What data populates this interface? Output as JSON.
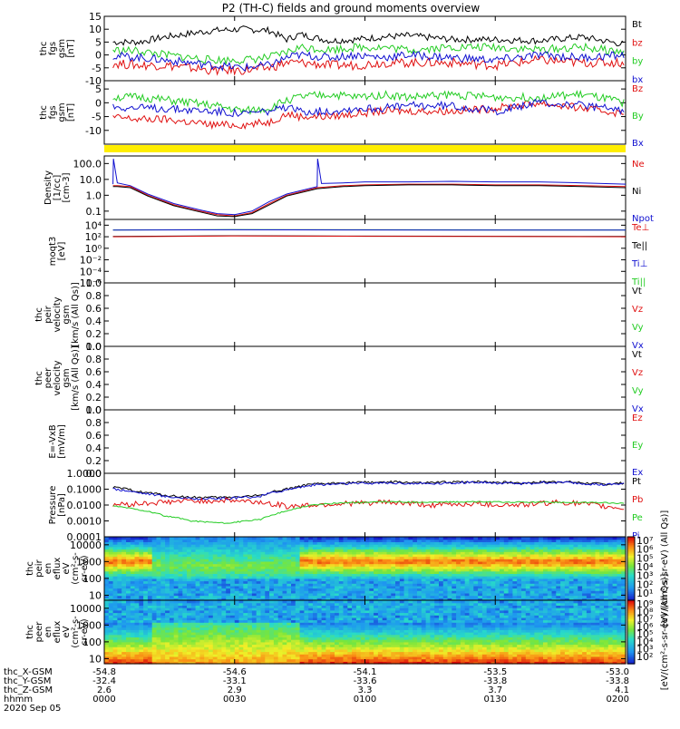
{
  "title": "P2 (TH-C) fields and ground moments overview",
  "colors": {
    "black": "#000000",
    "red": "#e01010",
    "green": "#22cc22",
    "blue": "#1010d0",
    "yellow": "#ffee00"
  },
  "chart_data": [
    {
      "type": "line",
      "id": "fgs_gsm",
      "ylabel_lines": [
        "thc",
        "fgs",
        "gsm",
        "[nT]"
      ],
      "ylim": [
        -10,
        15
      ],
      "yticks": [
        "15",
        "10",
        "5",
        "0",
        "-5",
        "-10"
      ],
      "legend": [
        {
          "label": "Bt",
          "color": "#000000"
        },
        {
          "label": "bz",
          "color": "#e01010"
        },
        {
          "label": "by",
          "color": "#22cc22"
        },
        {
          "label": "bx",
          "color": "#1010d0"
        }
      ],
      "series": [
        {
          "name": "Bt",
          "color": "#000000",
          "x": [
            0,
            8,
            14,
            25,
            32,
            38,
            42,
            45,
            52,
            58,
            64,
            70,
            80,
            90,
            100,
            110,
            120
          ],
          "y": [
            5,
            5,
            7,
            9.5,
            10,
            9.5,
            6,
            8,
            5.5,
            6,
            7,
            7.5,
            6,
            6,
            5.5,
            7,
            4
          ],
          "noise": 1.3
        },
        {
          "name": "bz",
          "color": "#e01010",
          "x": [
            0,
            8,
            14,
            25,
            32,
            38,
            42,
            45,
            52,
            58,
            64,
            70,
            80,
            90,
            100,
            110,
            120
          ],
          "y": [
            -3,
            -4,
            -4,
            -6,
            -6,
            -5,
            -3,
            -3,
            -4,
            -4,
            -3,
            -3,
            -3,
            -4,
            -2,
            -3,
            -3
          ],
          "noise": 1.8
        },
        {
          "name": "by",
          "color": "#22cc22",
          "x": [
            0,
            8,
            14,
            25,
            32,
            38,
            42,
            45,
            52,
            58,
            64,
            70,
            80,
            90,
            100,
            110,
            120
          ],
          "y": [
            2,
            1.5,
            0,
            -2,
            -2,
            -1,
            1,
            3,
            2,
            3,
            3,
            2,
            3,
            3,
            2,
            3,
            1
          ],
          "noise": 1.6
        },
        {
          "name": "bx",
          "color": "#1010d0",
          "x": [
            0,
            8,
            14,
            25,
            32,
            38,
            42,
            45,
            52,
            58,
            64,
            70,
            80,
            90,
            100,
            110,
            120
          ],
          "y": [
            0,
            -1,
            -2,
            -4,
            -5,
            -4,
            -1,
            0,
            -1,
            0,
            -1,
            0,
            -1,
            -2,
            0,
            -1,
            0
          ],
          "noise": 1.6
        }
      ]
    },
    {
      "type": "line",
      "id": "fgs_gsm_components",
      "ylabel_lines": [
        "thc",
        "fgs",
        "gsm",
        "[nT]"
      ],
      "ylim": [
        -15,
        8
      ],
      "yticks": [
        "5",
        "0",
        "-5",
        "-10"
      ],
      "legend": [
        {
          "label": "Bz",
          "color": "#e01010"
        },
        {
          "label": "By",
          "color": "#22cc22"
        },
        {
          "label": "Bx",
          "color": "#1010d0"
        }
      ],
      "series": [
        {
          "name": "Bz",
          "color": "#e01010",
          "x": [
            0,
            8,
            14,
            25,
            32,
            38,
            42,
            45,
            52,
            58,
            64,
            70,
            80,
            90,
            100,
            110,
            120
          ],
          "y": [
            -5,
            -6,
            -6,
            -8,
            -8,
            -7,
            -4,
            -5,
            -5,
            -4,
            -3,
            -3,
            -3,
            -2,
            0,
            -2,
            -4
          ],
          "noise": 1.4
        },
        {
          "name": "By",
          "color": "#22cc22",
          "x": [
            0,
            8,
            14,
            25,
            32,
            38,
            42,
            45,
            52,
            58,
            64,
            70,
            80,
            90,
            100,
            110,
            120
          ],
          "y": [
            2,
            2,
            1,
            -1,
            -3,
            -2,
            1,
            2,
            3,
            2,
            3,
            2,
            3,
            2,
            2,
            3,
            0
          ],
          "noise": 1.5
        },
        {
          "name": "Bx",
          "color": "#1010d0",
          "x": [
            0,
            8,
            14,
            25,
            32,
            38,
            42,
            45,
            52,
            58,
            64,
            70,
            80,
            90,
            100,
            110,
            120
          ],
          "y": [
            -1,
            -2,
            -2,
            -3,
            -4,
            -3,
            -2,
            -3,
            -3,
            -2,
            -2,
            -1,
            -1,
            -3,
            0,
            -1,
            -3
          ],
          "noise": 1.5
        }
      ]
    },
    {
      "type": "line",
      "id": "density",
      "scale": "log",
      "ylabel_lines": [
        "Density",
        "[1/cc]",
        "[cm-3]"
      ],
      "ylim": [
        0.03,
        300
      ],
      "yticks": [
        {
          "v": 100,
          "t": "100.0"
        },
        {
          "v": 10,
          "t": "10.0"
        },
        {
          "v": 1,
          "t": "1.0"
        },
        {
          "v": 0.1,
          "t": "0.1"
        }
      ],
      "legend": [
        {
          "label": "Ne",
          "color": "#e01010"
        },
        {
          "label": "Ni",
          "color": "#000000"
        },
        {
          "label": "Npot",
          "color": "#1010d0"
        }
      ],
      "series": [
        {
          "name": "Npot",
          "color": "#1010d0",
          "x": [
            0,
            2,
            2.1,
            3,
            6,
            10,
            16,
            22,
            26,
            30,
            34,
            38,
            42,
            49,
            49.1,
            50,
            55,
            60,
            70,
            80,
            90,
            100,
            110,
            120
          ],
          "y": [
            5,
            5,
            200,
            6,
            4,
            1.2,
            0.3,
            0.12,
            0.07,
            0.06,
            0.1,
            0.4,
            1.2,
            3.5,
            200,
            5.5,
            6,
            7,
            7,
            7.5,
            7,
            7,
            6,
            5
          ]
        },
        {
          "name": "Ne",
          "color": "#e01010",
          "x": [
            0,
            3,
            6,
            10,
            16,
            22,
            26,
            30,
            34,
            38,
            42,
            49,
            55,
            60,
            70,
            80,
            90,
            100,
            110,
            120
          ],
          "y": [
            4,
            4,
            3.5,
            1,
            0.25,
            0.1,
            0.06,
            0.05,
            0.08,
            0.3,
            1,
            3,
            4,
            4.5,
            5,
            5,
            4.5,
            4.5,
            4,
            3.5
          ]
        },
        {
          "name": "Ni",
          "color": "#000000",
          "x": [
            0,
            3,
            6,
            10,
            16,
            22,
            26,
            30,
            34,
            38,
            42,
            49,
            55,
            60,
            70,
            80,
            90,
            100,
            110,
            120
          ],
          "y": [
            3.5,
            3.5,
            3,
            0.9,
            0.22,
            0.09,
            0.05,
            0.045,
            0.07,
            0.25,
            0.9,
            2.6,
            3.5,
            4,
            4.5,
            4.5,
            4,
            4,
            3.5,
            3
          ]
        }
      ]
    },
    {
      "type": "line",
      "id": "moqt3",
      "scale": "log",
      "ylabel_lines": [
        "moqt3",
        "[eV]"
      ],
      "ylim": [
        1e-06,
        100000.0
      ],
      "yticks": [
        {
          "v": 10000.0,
          "t": "10⁴"
        },
        {
          "v": 100.0,
          "t": "10²"
        },
        {
          "v": 1,
          "t": "10⁰"
        },
        {
          "v": 0.01,
          "t": "10⁻²"
        },
        {
          "v": 0.0001,
          "t": "10⁻⁴"
        },
        {
          "v": 1e-06,
          "t": "10⁻⁶"
        }
      ],
      "legend": [
        {
          "label": "Te⊥",
          "color": "#e01010"
        },
        {
          "label": "Te||",
          "color": "#000000"
        },
        {
          "label": "Ti⊥",
          "color": "#1010d0"
        },
        {
          "label": "Ti||",
          "color": "#22cc22"
        }
      ],
      "series": [
        {
          "name": "Ti||",
          "color": "#22cc22",
          "x": [
            0,
            30,
            60,
            90,
            120
          ],
          "y": [
            1500,
            1700,
            1600,
            1500,
            1500
          ]
        },
        {
          "name": "Ti⊥",
          "color": "#1010d0",
          "x": [
            0,
            30,
            60,
            90,
            120
          ],
          "y": [
            1400,
            1600,
            1500,
            1400,
            1400
          ]
        },
        {
          "name": "Te||",
          "color": "#000000",
          "x": [
            0,
            30,
            60,
            90,
            120
          ],
          "y": [
            110,
            150,
            130,
            120,
            110
          ]
        },
        {
          "name": "Te⊥",
          "color": "#e01010",
          "x": [
            0,
            30,
            60,
            90,
            120
          ],
          "y": [
            100,
            140,
            120,
            110,
            100
          ]
        }
      ]
    },
    {
      "type": "line",
      "id": "peir_velocity",
      "ylabel_lines": [
        "thc",
        "peir",
        "velocity",
        "gsm",
        "[km/s (All Qs)]"
      ],
      "ylim": [
        0,
        1
      ],
      "yticks": [
        "1.0",
        "0.8",
        "0.6",
        "0.4",
        "0.2",
        "0.0"
      ],
      "legend": [
        {
          "label": "Vt",
          "color": "#000000"
        },
        {
          "label": "Vz",
          "color": "#e01010"
        },
        {
          "label": "Vy",
          "color": "#22cc22"
        },
        {
          "label": "Vx",
          "color": "#1010d0"
        }
      ],
      "series": []
    },
    {
      "type": "line",
      "id": "peer_velocity",
      "ylabel_lines": [
        "thc",
        "peer",
        "velocity",
        "gsm",
        "[km/s (All Qs)]"
      ],
      "ylim": [
        0,
        1
      ],
      "yticks": [
        "1.0",
        "0.8",
        "0.6",
        "0.4",
        "0.2",
        "0.0"
      ],
      "legend": [
        {
          "label": "Vt",
          "color": "#000000"
        },
        {
          "label": "Vz",
          "color": "#e01010"
        },
        {
          "label": "Vy",
          "color": "#22cc22"
        },
        {
          "label": "Vx",
          "color": "#1010d0"
        }
      ],
      "series": []
    },
    {
      "type": "line",
      "id": "efield",
      "ylabel_lines": [
        "E=-VxB",
        "[mV/m]"
      ],
      "ylim": [
        0,
        1
      ],
      "yticks": [
        "1.0",
        "0.8",
        "0.6",
        "0.4",
        "0.2",
        "0.0"
      ],
      "legend": [
        {
          "label": "Ez",
          "color": "#e01010"
        },
        {
          "label": "Ey",
          "color": "#22cc22"
        },
        {
          "label": "Ex",
          "color": "#1010d0"
        }
      ],
      "series": []
    },
    {
      "type": "line",
      "id": "pressure",
      "scale": "log",
      "ylabel_lines": [
        "Pressure",
        "[nPa]"
      ],
      "ylim": [
        0.0001,
        1
      ],
      "yticks": [
        {
          "v": 1,
          "t": "1.0000"
        },
        {
          "v": 0.1,
          "t": "0.1000"
        },
        {
          "v": 0.01,
          "t": "0.0100"
        },
        {
          "v": 0.001,
          "t": "0.0010"
        },
        {
          "v": 0.0001,
          "t": "0.0001"
        }
      ],
      "legend": [
        {
          "label": "Pt",
          "color": "#000000"
        },
        {
          "label": "Pb",
          "color": "#e01010"
        },
        {
          "label": "Pe",
          "color": "#22cc22"
        },
        {
          "label": "Pi",
          "color": "#1010d0"
        }
      ],
      "series": [
        {
          "name": "Pt",
          "color": "#000000",
          "x": [
            0,
            8,
            14,
            20,
            28,
            36,
            42,
            48,
            55,
            65,
            75,
            85,
            95,
            105,
            115,
            120
          ],
          "y": [
            0.15,
            0.07,
            0.04,
            0.03,
            0.03,
            0.04,
            0.1,
            0.2,
            0.25,
            0.28,
            0.25,
            0.3,
            0.25,
            0.3,
            0.2,
            0.25
          ],
          "noise": 0.15
        },
        {
          "name": "Pi",
          "color": "#1010d0",
          "x": [
            0,
            8,
            14,
            20,
            28,
            36,
            42,
            48,
            55,
            65,
            75,
            85,
            95,
            105,
            115,
            120
          ],
          "y": [
            0.12,
            0.06,
            0.035,
            0.025,
            0.025,
            0.035,
            0.09,
            0.18,
            0.22,
            0.25,
            0.22,
            0.27,
            0.22,
            0.27,
            0.18,
            0.22
          ],
          "noise": 0.15
        },
        {
          "name": "Pb",
          "color": "#e01010",
          "x": [
            0,
            8,
            14,
            20,
            28,
            36,
            42,
            48,
            55,
            65,
            75,
            85,
            95,
            105,
            115,
            120
          ],
          "y": [
            0.01,
            0.012,
            0.015,
            0.018,
            0.02,
            0.015,
            0.008,
            0.01,
            0.012,
            0.015,
            0.01,
            0.012,
            0.01,
            0.015,
            0.008,
            0.006
          ],
          "noise": 0.35
        },
        {
          "name": "Pe",
          "color": "#22cc22",
          "x": [
            0,
            8,
            14,
            20,
            28,
            36,
            42,
            48,
            55,
            65,
            75,
            85,
            95,
            105,
            115,
            120
          ],
          "y": [
            0.01,
            0.005,
            0.002,
            0.001,
            0.0007,
            0.0012,
            0.004,
            0.01,
            0.014,
            0.016,
            0.015,
            0.016,
            0.015,
            0.015,
            0.014,
            0.012
          ],
          "noise": 0.08
        }
      ]
    },
    {
      "type": "heatmap",
      "id": "peir_en_eflux",
      "ylabel_lines": [
        "thc",
        "peir",
        "en",
        "eflux",
        "eV",
        "(cm²-s-",
        "sr-eV)"
      ],
      "yscale": "log",
      "ylim": [
        5,
        30000
      ],
      "yticks": [
        {
          "v": 10000,
          "t": "10000"
        },
        {
          "v": 1000,
          "t": "1000"
        },
        {
          "v": 100,
          "t": "100"
        },
        {
          "v": 10,
          "t": "10"
        }
      ],
      "colorbar": {
        "ticks": [
          "10⁷",
          "10⁶",
          "10⁵",
          "10⁴",
          "10³",
          "10²",
          "10¹"
        ],
        "label": "[eV/(cm²-s-sr-eV) (All Qs)]"
      }
    },
    {
      "type": "heatmap",
      "id": "peer_en_eflux",
      "ylabel_lines": [
        "thc",
        "peer",
        "en",
        "eflux",
        "eV",
        "(cm²-s-",
        "sr-eV)"
      ],
      "yscale": "log",
      "ylim": [
        5,
        30000
      ],
      "yticks": [
        {
          "v": 10000,
          "t": "10000"
        },
        {
          "v": 1000,
          "t": "1000"
        },
        {
          "v": 100,
          "t": "100"
        },
        {
          "v": 10,
          "t": "10"
        }
      ],
      "colorbar": {
        "ticks": [
          "10⁹",
          "10⁸",
          "10⁷",
          "10⁶",
          "10⁵",
          "10⁴",
          "10³",
          "10²"
        ],
        "label": "[eV/(cm²-s-sr-eV) (All Qs)]"
      }
    }
  ],
  "xaxis": {
    "range_minutes": [
      0,
      120
    ],
    "tick_minutes": [
      0,
      30,
      60,
      90,
      120
    ],
    "rows": [
      {
        "label": "thc_X-GSM",
        "values": [
          "-54.8",
          "-54.6",
          "-54.1",
          "-53.5",
          "-53.0"
        ]
      },
      {
        "label": "thc_Y-GSM",
        "values": [
          "-32.4",
          "-33.1",
          "-33.6",
          "-33.8",
          "-33.8"
        ]
      },
      {
        "label": "thc_Z-GSM",
        "values": [
          "2.6",
          "2.9",
          "3.3",
          "3.7",
          "4.1"
        ]
      },
      {
        "label": "hhmm",
        "values": [
          "0000",
          "0030",
          "0100",
          "0130",
          "0200"
        ]
      }
    ],
    "date": "2020 Sep 05"
  }
}
